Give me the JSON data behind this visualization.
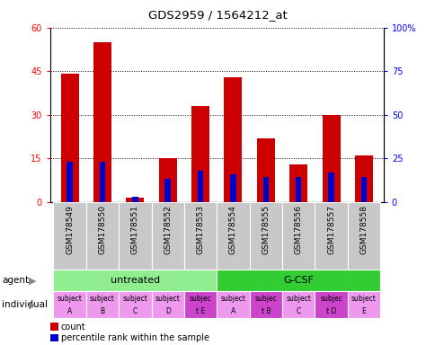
{
  "title": "GDS2959 / 1564212_at",
  "samples": [
    "GSM178549",
    "GSM178550",
    "GSM178551",
    "GSM178552",
    "GSM178553",
    "GSM178554",
    "GSM178555",
    "GSM178556",
    "GSM178557",
    "GSM178558"
  ],
  "counts": [
    44,
    55,
    1.5,
    15,
    33,
    43,
    22,
    13,
    30,
    16
  ],
  "percentile_ranks": [
    23,
    23,
    3,
    13,
    18,
    16,
    14,
    14,
    17,
    14
  ],
  "ylim_left": [
    0,
    60
  ],
  "ylim_right": [
    0,
    100
  ],
  "yticks_left": [
    0,
    15,
    30,
    45,
    60
  ],
  "yticks_right": [
    0,
    25,
    50,
    75,
    100
  ],
  "agent_labels": [
    "untreated",
    "G-CSF"
  ],
  "agent_colors": [
    "#90EE90",
    "#33CC33"
  ],
  "individual_labels": [
    [
      "subject",
      "A"
    ],
    [
      "subject",
      "B"
    ],
    [
      "subject",
      "C"
    ],
    [
      "subject",
      "D"
    ],
    [
      "subjec",
      "t E"
    ],
    [
      "subject",
      "A"
    ],
    [
      "subjec",
      "t B"
    ],
    [
      "subject",
      "C"
    ],
    [
      "subjec",
      "t D"
    ],
    [
      "subject",
      "E"
    ]
  ],
  "individual_colors": [
    "#EE99EE",
    "#EE99EE",
    "#EE99EE",
    "#EE99EE",
    "#CC44CC",
    "#EE99EE",
    "#CC44CC",
    "#EE99EE",
    "#CC44CC",
    "#EE99EE"
  ],
  "count_color": "#CC0000",
  "percentile_color": "#0000CC",
  "bar_width": 0.55,
  "blue_bar_width": 0.18,
  "tick_label_area_color": "#C8C8C8",
  "background_color": "#FFFFFF"
}
